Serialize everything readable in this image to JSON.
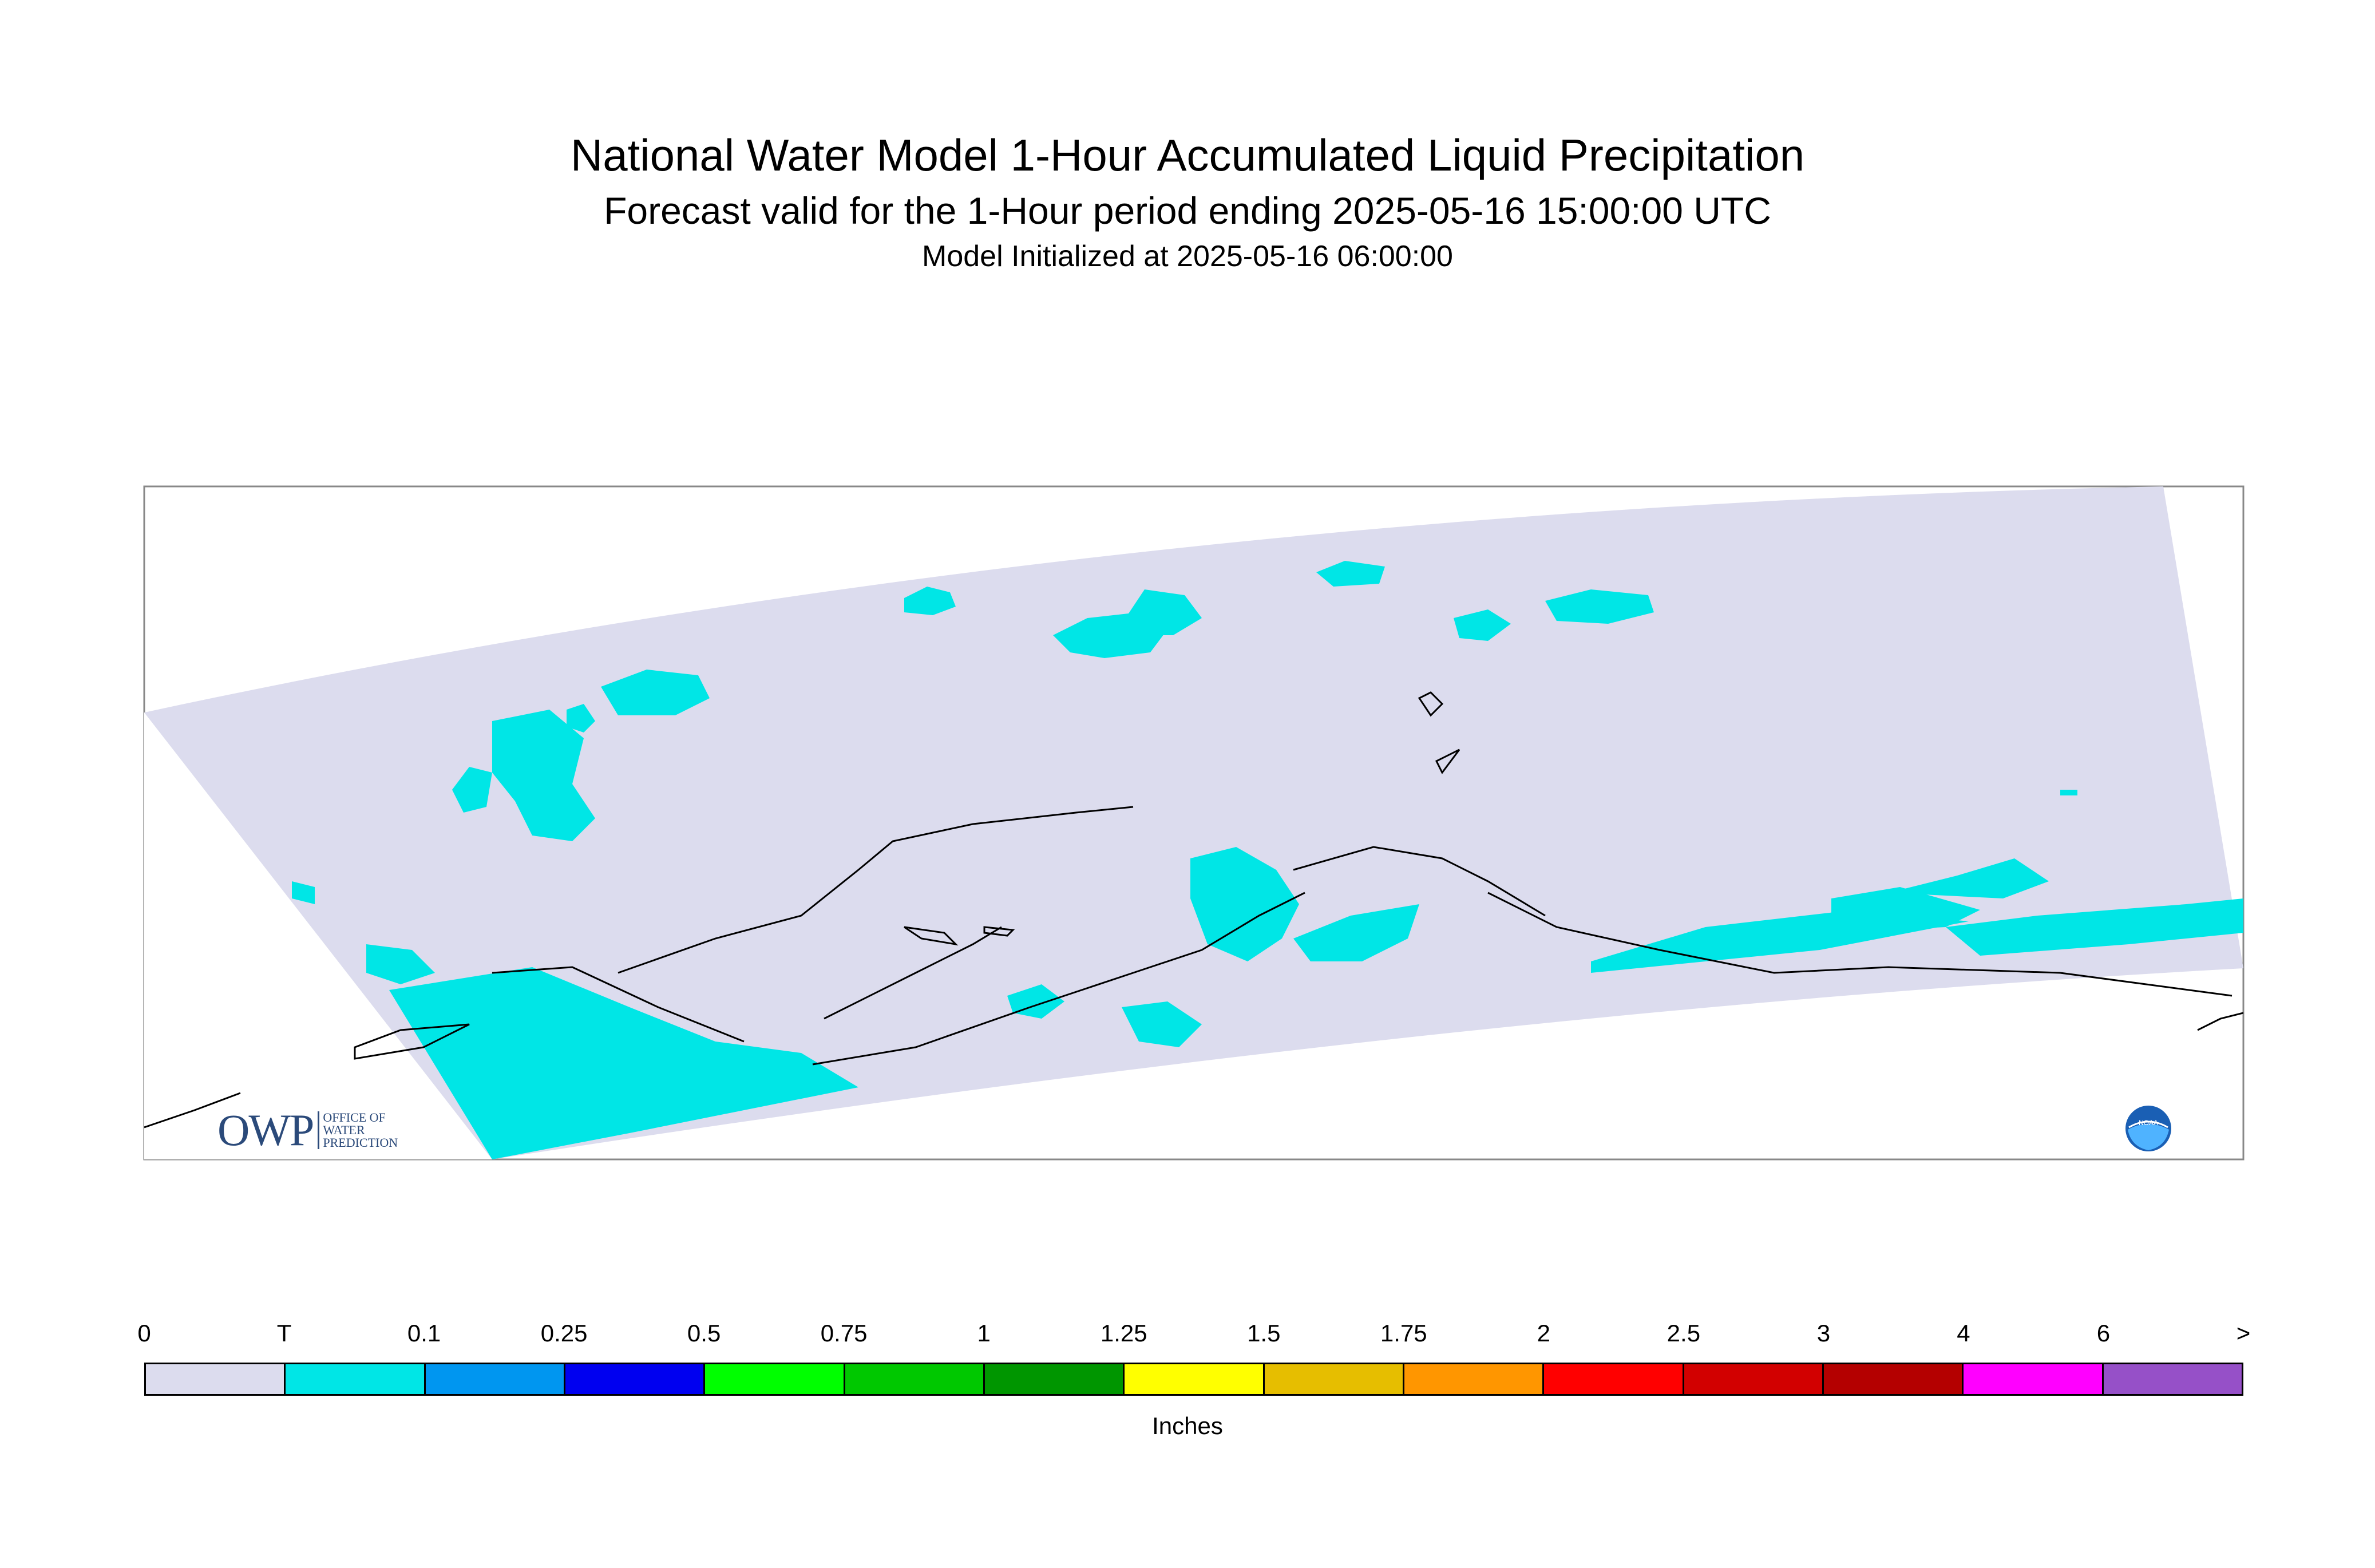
{
  "title": "National Water Model 1-Hour Accumulated Liquid Precipitation",
  "subtitle": "Forecast valid for the 1-Hour period ending 2025-05-16 15:00:00 UTC",
  "init_line": "Model Initialized at 2025-05-16 06:00:00",
  "colorbar": {
    "units": "Inches",
    "labels": [
      "0",
      "T",
      "0.1",
      "0.25",
      "0.5",
      "0.75",
      "1",
      "1.25",
      "1.5",
      "1.75",
      "2",
      "2.5",
      "3",
      "4",
      "6",
      ">"
    ],
    "colors": [
      "#dcdcee",
      "#00e6e6",
      "#0096f0",
      "#0000f0",
      "#00ff00",
      "#00c800",
      "#009600",
      "#ffff00",
      "#e6be00",
      "#ff9600",
      "#ff0000",
      "#d20000",
      "#b40000",
      "#ff00ff",
      "#9650c8"
    ]
  },
  "map": {
    "region": "Alaska",
    "colors": {
      "background": "#dcdcee",
      "trace": "#00e6e6",
      "outline": "#000000",
      "frame": "#888888"
    }
  },
  "logos": {
    "owp": {
      "mark": "OWP",
      "line1": "OFFICE OF",
      "line2": "WATER",
      "line3": "PREDICTION"
    },
    "noaa": {
      "text": "NOAA"
    }
  }
}
